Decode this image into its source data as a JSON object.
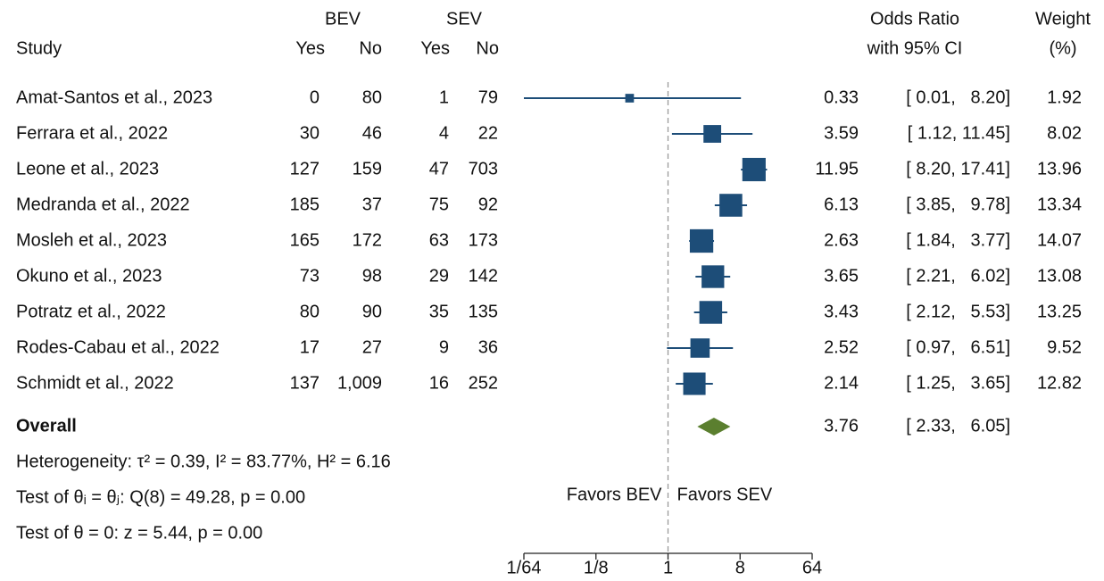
{
  "chart_data": {
    "type": "forest",
    "header": {
      "study": "Study",
      "bev": "BEV",
      "sev": "SEV",
      "yes": "Yes",
      "no": "No",
      "or_title": "Odds Ratio",
      "or_subtitle": "with 95% CI",
      "weight_title": "Weight",
      "weight_unit": "(%)"
    },
    "categories": [
      "Amat-Santos et al., 2023",
      "Ferrara et al., 2022",
      "Leone et al., 2023",
      "Medranda et al., 2022",
      "Mosleh et al., 2023",
      "Okuno et al., 2023",
      "Potratz et al., 2022",
      "Rodes-Cabau et al., 2022",
      "Schmidt et al., 2022"
    ],
    "bev_yes": [
      0,
      30,
      127,
      185,
      165,
      73,
      80,
      17,
      137
    ],
    "bev_no": [
      80,
      46,
      159,
      37,
      172,
      98,
      90,
      27,
      {
        "value": 1009,
        "label": "1,009"
      }
    ],
    "sev_yes": [
      1,
      4,
      47,
      75,
      63,
      29,
      35,
      9,
      16
    ],
    "sev_no": [
      79,
      22,
      703,
      92,
      173,
      142,
      135,
      36,
      252
    ],
    "or": [
      0.33,
      3.59,
      11.95,
      6.13,
      2.63,
      3.65,
      3.43,
      2.52,
      2.14
    ],
    "ci": {
      "low": [
        0.01,
        1.12,
        8.2,
        3.85,
        1.84,
        2.21,
        2.12,
        0.97,
        1.25
      ],
      "high": [
        8.2,
        11.45,
        17.41,
        9.78,
        3.77,
        6.02,
        5.53,
        6.51,
        3.65
      ],
      "labels": [
        "[ 0.01,   8.20]",
        "[ 1.12, 11.45]",
        "[ 8.20, 17.41]",
        "[ 3.85,   9.78]",
        "[ 1.84,   3.77]",
        "[ 2.21,   6.02]",
        "[ 2.12,   5.53]",
        "[ 0.97,   6.51]",
        "[ 1.25,   3.65]"
      ]
    },
    "weight": [
      1.92,
      8.02,
      13.96,
      13.34,
      14.07,
      13.08,
      13.25,
      9.52,
      12.82
    ],
    "overall": {
      "label": "Overall",
      "or": 3.76,
      "ci_low": 2.33,
      "ci_high": 6.05,
      "ci_label": "[ 2.33,   6.05]"
    },
    "annotations": [
      "Heterogeneity: τ² = 0.39, I² = 83.77%, H² = 6.16",
      "Test of θᵢ = θⱼ: Q(8) = 49.28, p = 0.00",
      "Test of θ = 0: z = 5.44, p = 0.00"
    ],
    "favors": [
      "Favors BEV",
      "Favors SEV"
    ],
    "xlog": 2,
    "xlim": [
      0.015625,
      64
    ],
    "xticks": [
      {
        "value": 0.015625,
        "label": "1/64"
      },
      {
        "value": 0.125,
        "label": "1/8"
      },
      1,
      8,
      64
    ],
    "xref": 1,
    "color": "#1d4d78",
    "overall_color": "#5b7f2f"
  }
}
